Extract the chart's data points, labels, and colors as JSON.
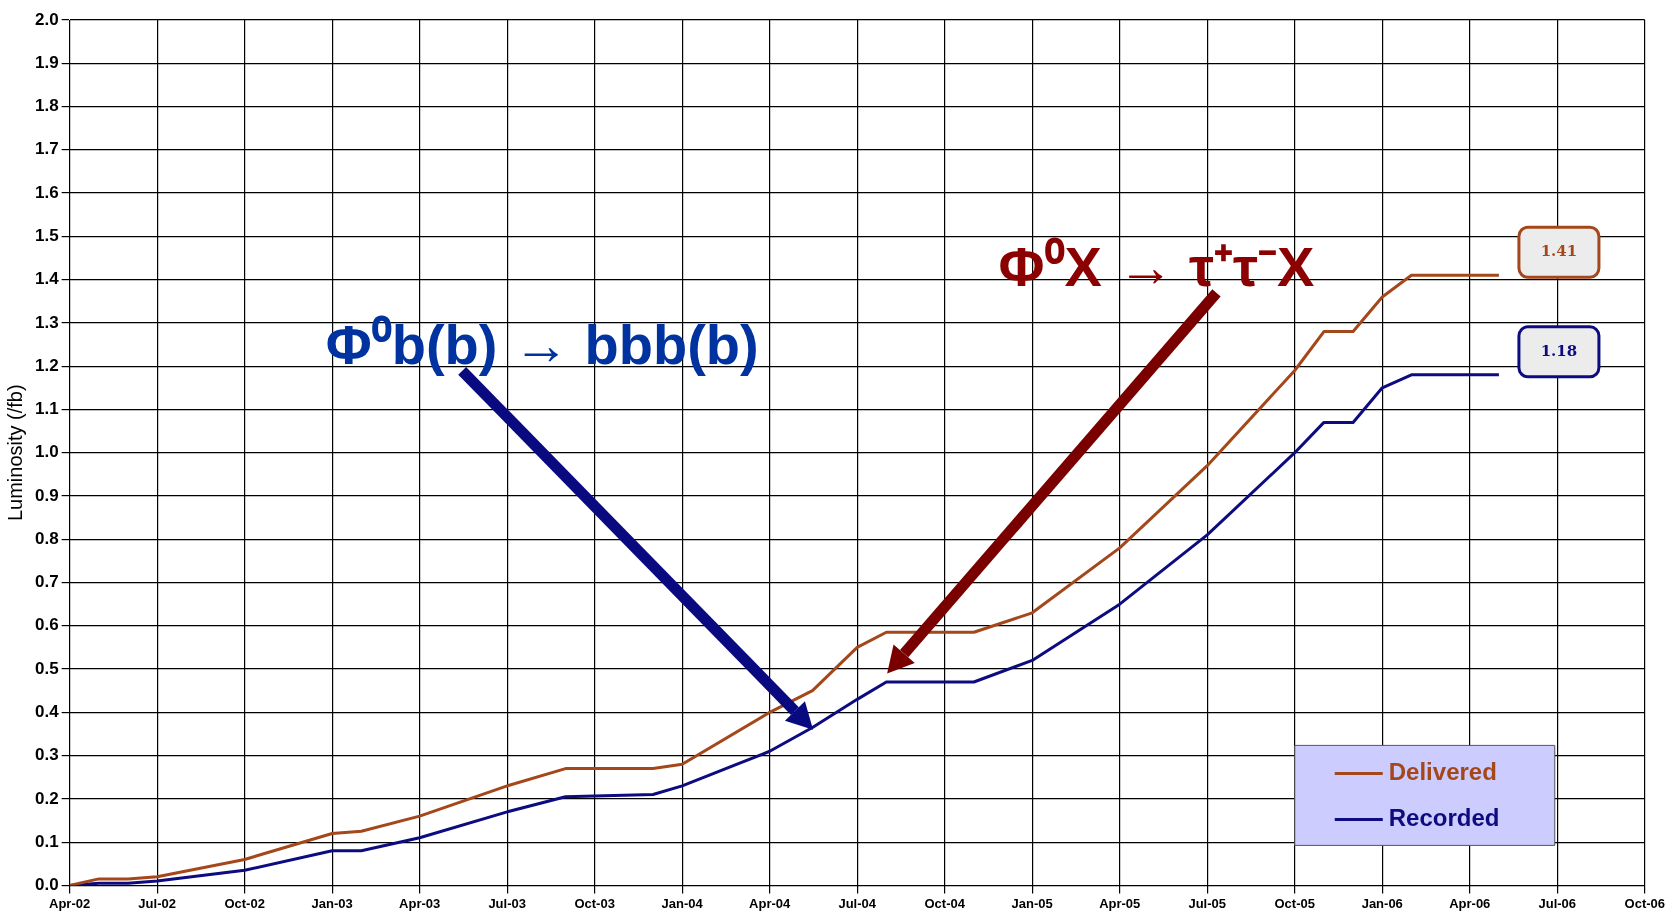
{
  "chart_data": {
    "type": "line",
    "ylabel": "Luminosity (/fb)",
    "xlim": [
      "2002-04",
      "2006-10"
    ],
    "xticks": [
      {
        "value": "2002-04",
        "label": "Apr-02"
      },
      {
        "value": "2002-07",
        "label": "Jul-02"
      },
      {
        "value": "2002-10",
        "label": "Oct-02"
      },
      {
        "value": "2003-01",
        "label": "Jan-03"
      },
      {
        "value": "2003-04",
        "label": "Apr-03"
      },
      {
        "value": "2003-07",
        "label": "Jul-03"
      },
      {
        "value": "2003-10",
        "label": "Oct-03"
      },
      {
        "value": "2004-01",
        "label": "Jan-04"
      },
      {
        "value": "2004-04",
        "label": "Apr-04"
      },
      {
        "value": "2004-07",
        "label": "Jul-04"
      },
      {
        "value": "2004-10",
        "label": "Oct-04"
      },
      {
        "value": "2005-01",
        "label": "Jan-05"
      },
      {
        "value": "2005-04",
        "label": "Apr-05"
      },
      {
        "value": "2005-07",
        "label": "Jul-05"
      },
      {
        "value": "2005-10",
        "label": "Oct-05"
      },
      {
        "value": "2006-01",
        "label": "Jan-06"
      },
      {
        "value": "2006-04",
        "label": "Apr-06"
      },
      {
        "value": "2006-07",
        "label": "Jul-06"
      },
      {
        "value": "2006-10",
        "label": "Oct-06"
      }
    ],
    "ylim": [
      0,
      2.0
    ],
    "yticks": [
      {
        "value": 0,
        "label": "0.0"
      },
      {
        "value": 0.1,
        "label": "0.1"
      },
      {
        "value": 0.2,
        "label": "0.2"
      },
      {
        "value": 0.3,
        "label": "0.3"
      },
      {
        "value": 0.4,
        "label": "0.4"
      },
      {
        "value": 0.5,
        "label": "0.5"
      },
      {
        "value": 0.6,
        "label": "0.6"
      },
      {
        "value": 0.7,
        "label": "0.7"
      },
      {
        "value": 0.8,
        "label": "0.8"
      },
      {
        "value": 0.9,
        "label": "0.9"
      },
      {
        "value": 1.0,
        "label": "1.0"
      },
      {
        "value": 1.1,
        "label": "1.1"
      },
      {
        "value": 1.2,
        "label": "1.2"
      },
      {
        "value": 1.3,
        "label": "1.3"
      },
      {
        "value": 1.4,
        "label": "1.4"
      },
      {
        "value": 1.5,
        "label": "1.5"
      },
      {
        "value": 1.6,
        "label": "1.6"
      },
      {
        "value": 1.7,
        "label": "1.7"
      },
      {
        "value": 1.8,
        "label": "1.8"
      },
      {
        "value": 1.9,
        "label": "1.9"
      },
      {
        "value": 2.0,
        "label": "2.0"
      }
    ],
    "x": [
      "2002-04",
      "2002-05",
      "2002-06",
      "2002-07",
      "2002-10",
      "2003-01",
      "2003-02",
      "2003-04",
      "2003-07",
      "2003-09",
      "2003-12",
      "2004-01",
      "2004-04",
      "2004-05-15",
      "2004-07",
      "2004-08",
      "2004-11",
      "2005-01",
      "2005-04",
      "2005-07",
      "2005-10",
      "2005-11",
      "2005-12",
      "2006-01",
      "2006-02",
      "2006-05"
    ],
    "series": [
      {
        "name": "Delivered",
        "color": "#a4471a",
        "values": [
          0,
          0.015,
          0.015,
          0.02,
          0.06,
          0.12,
          0.125,
          0.16,
          0.23,
          0.27,
          0.27,
          0.28,
          0.4,
          0.45,
          0.55,
          0.585,
          0.585,
          0.63,
          0.78,
          0.97,
          1.19,
          1.28,
          1.28,
          1.36,
          1.41,
          1.41
        ]
      },
      {
        "name": "Recorded",
        "color": "#0c0c80",
        "values": [
          0,
          0.005,
          0.005,
          0.01,
          0.035,
          0.08,
          0.08,
          0.11,
          0.17,
          0.205,
          0.21,
          0.23,
          0.31,
          0.365,
          0.43,
          0.47,
          0.47,
          0.52,
          0.65,
          0.81,
          1.0,
          1.07,
          1.07,
          1.15,
          1.18,
          1.18
        ]
      }
    ],
    "annotations": [
      "Φ⁰b(b) → bbb(b)",
      "Φ⁰X → τ⁺τ⁻X",
      "1.41",
      "1.18"
    ],
    "grid": true,
    "legend": "bottom right",
    "marker": "none",
    "line_style": "solid"
  }
}
